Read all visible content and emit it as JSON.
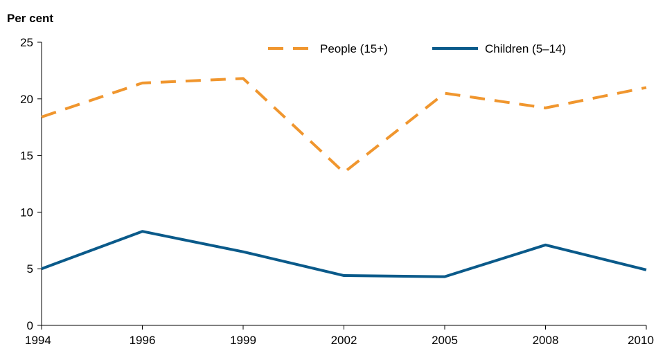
{
  "chart_data": {
    "type": "line",
    "title": "",
    "xlabel": "",
    "ylabel": "Per cent",
    "categories": [
      "1994",
      "1996",
      "1999",
      "2002",
      "2005",
      "2008",
      "2010"
    ],
    "ylim": [
      0,
      25
    ],
    "yticks": [
      "0",
      "5",
      "10",
      "15",
      "20",
      "25"
    ],
    "grid": false,
    "legend_position": "top-right",
    "series": [
      {
        "name": "People (15+)",
        "values": [
          18.4,
          21.4,
          21.8,
          13.5,
          20.5,
          19.2,
          21.0
        ],
        "color": "#F0962E",
        "style": "dashed"
      },
      {
        "name": "Children (5–14)",
        "values": [
          5.0,
          8.3,
          6.5,
          4.4,
          4.3,
          7.1,
          4.9
        ],
        "color": "#0A5A8A",
        "style": "solid"
      }
    ]
  }
}
